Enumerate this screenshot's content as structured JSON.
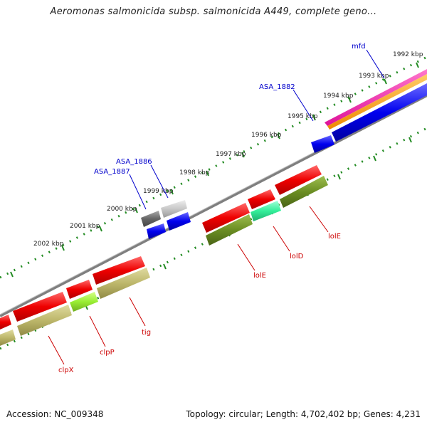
{
  "header": {
    "title": "Aeromonas salmonicida subsp. salmonicida A449, complete geno..."
  },
  "footer": {
    "accession": "Accession: NC_009348",
    "summary": "Topology: circular; Length: 4,702,402 bp; Genes: 4,231"
  },
  "scale": {
    "tick_labels": [
      "2002 kbp",
      "2001 kbp",
      "2000 kbp",
      "1999 kbp",
      "1998 kbp",
      "1997 kbp",
      "1996 kbp",
      "1995 kbp",
      "1994 kbp",
      "1993 kbp",
      "1992 kbp"
    ]
  },
  "labels": {
    "forward": [
      "mfd",
      "ASA_1882",
      "ASA_1886",
      "ASA_1887"
    ],
    "reverse": [
      "lolE",
      "lolD",
      "lolE",
      "tig",
      "clpP",
      "clpX"
    ]
  },
  "colors": {
    "forward_label": "#0000cc",
    "reverse_label": "#cc0000",
    "red_gene": "#ee0000",
    "blue_gene": "#0000ee",
    "olive_gene": "#6b8e23",
    "khaki_gene": "#bdb76b",
    "backbone": "#888888",
    "tick": "#228b22"
  }
}
